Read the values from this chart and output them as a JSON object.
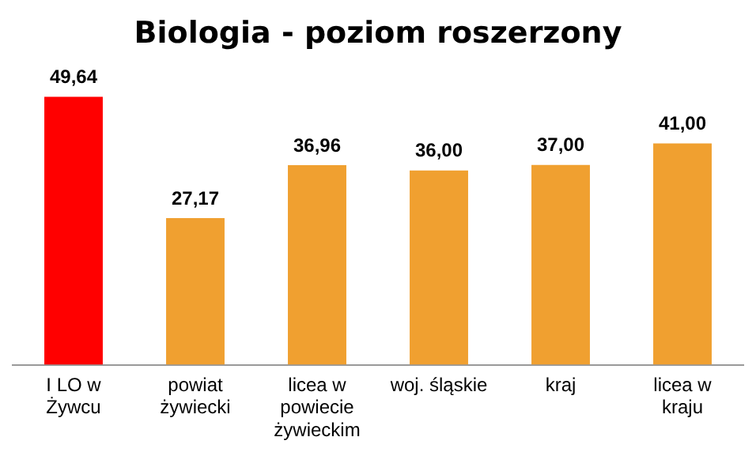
{
  "chart_data": {
    "type": "bar",
    "title": "Biologia - poziom roszerzony",
    "categories": [
      "I LO w Żywcu",
      "powiat żywiecki",
      "licea w powiecie żywieckim",
      "woj. śląskie",
      "kraj",
      "licea w kraju"
    ],
    "values": [
      49.64,
      27.17,
      36.96,
      36.0,
      37.0,
      41.0
    ],
    "colors": [
      "#ff0000",
      "#f0a030",
      "#f0a030",
      "#f0a030",
      "#f0a030",
      "#f0a030"
    ],
    "value_labels": [
      "49,64",
      "27,17",
      "36,96",
      "36,00",
      "37,00",
      "41,00"
    ],
    "grid": false,
    "legend": false
  }
}
